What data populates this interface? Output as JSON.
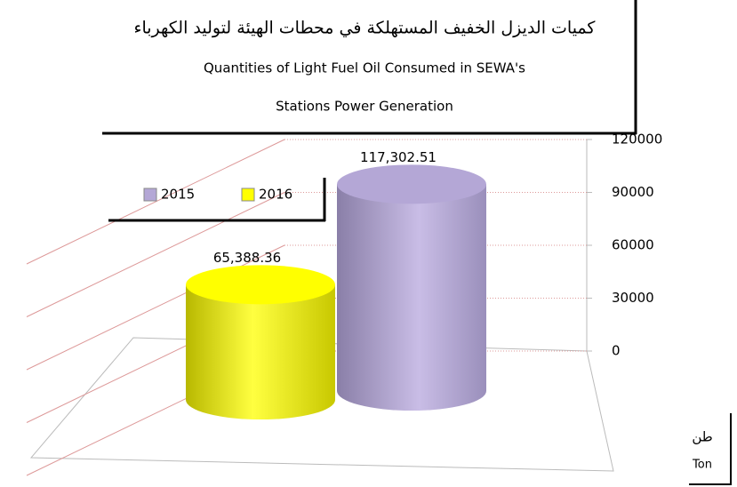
{
  "chart_data": {
    "type": "bar",
    "title": "كميات الديزل الخفيف المستهلكة في محطات الهيئة لتوليد الكهرباء",
    "subtitle": [
      "Quantities of Light Fuel Oil Consumed in SEWA's",
      "Stations Power Generation"
    ],
    "unit_label": [
      "طن",
      "Ton"
    ],
    "categories": [
      null
    ],
    "series": [
      {
        "name": "2015",
        "color": "#b4a7d6",
        "values": [
          117302.51
        ],
        "value_labels": [
          "117,302.51"
        ]
      },
      {
        "name": "2016",
        "color": "#ffff00",
        "values": [
          65388.36
        ],
        "value_labels": [
          "65,388.36"
        ]
      }
    ],
    "ylim": [
      0,
      120000
    ],
    "yticks": [
      0,
      30000,
      60000,
      90000,
      120000
    ],
    "grid": true
  }
}
